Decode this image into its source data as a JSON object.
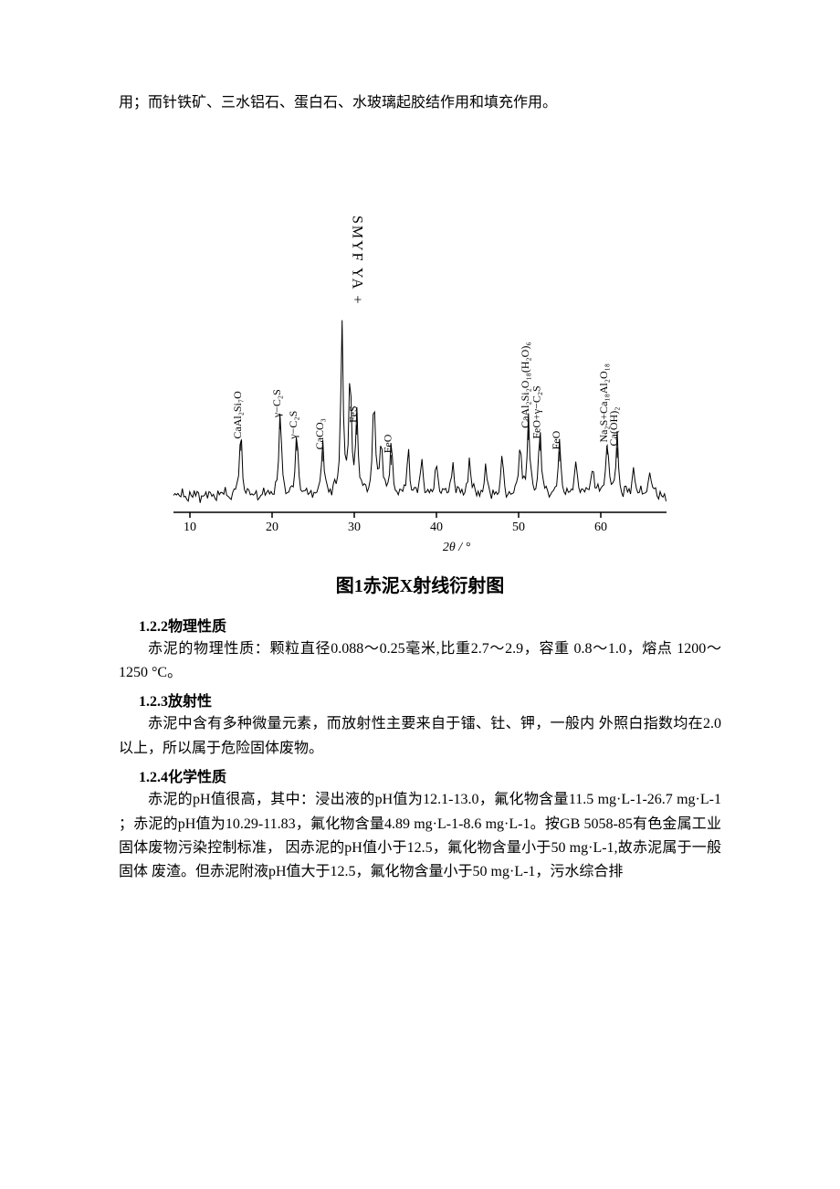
{
  "top_line": "用；而针铁矿、三水铝石、蛋白石、水玻璃起胶结作用和填充作用。",
  "xrd": {
    "type": "line-spectrum",
    "center_label_vertical": "SMYF YA +",
    "x_axis_label": "2θ / °",
    "x_ticks": [
      10,
      20,
      30,
      40,
      50,
      60
    ],
    "xlim": [
      8,
      68
    ],
    "ylim": [
      0,
      110
    ],
    "background_color": "#ffffff",
    "line_color": "#000000",
    "line_width": 1,
    "tick_fontsize": 14,
    "label_fontsize": 14,
    "peak_label_fontsize": 12,
    "peaks": [
      {
        "x": 16.2,
        "h": 36,
        "label": "CaAl₂Si₇O"
      },
      {
        "x": 21.0,
        "h": 48,
        "label": "γ−C₂S"
      },
      {
        "x": 23.0,
        "h": 36,
        "label": "γ−C₂S"
      },
      {
        "x": 26.2,
        "h": 30,
        "label": "CaCO₃"
      },
      {
        "x": 28.5,
        "h": 95,
        "label": ""
      },
      {
        "x": 29.5,
        "h": 65,
        "label": ""
      },
      {
        "x": 30.3,
        "h": 45,
        "label": "FeS"
      },
      {
        "x": 32.4,
        "h": 55,
        "label": ""
      },
      {
        "x": 33.3,
        "h": 30,
        "label": ""
      },
      {
        "x": 34.5,
        "h": 28,
        "label": "FeO"
      },
      {
        "x": 36.6,
        "h": 25,
        "label": ""
      },
      {
        "x": 38.2,
        "h": 20,
        "label": ""
      },
      {
        "x": 40.0,
        "h": 18,
        "label": ""
      },
      {
        "x": 42.0,
        "h": 20,
        "label": ""
      },
      {
        "x": 44.0,
        "h": 22,
        "label": ""
      },
      {
        "x": 46.0,
        "h": 16,
        "label": ""
      },
      {
        "x": 48.0,
        "h": 20,
        "label": ""
      },
      {
        "x": 50.2,
        "h": 30,
        "label": ""
      },
      {
        "x": 51.2,
        "h": 42,
        "label": "CaAl₂Si₂O₁₈(H₂O)₆"
      },
      {
        "x": 52.6,
        "h": 36,
        "label": "FeO+γ−C₂S"
      },
      {
        "x": 55.0,
        "h": 30,
        "label": "FeO"
      },
      {
        "x": 57.0,
        "h": 20,
        "label": ""
      },
      {
        "x": 59.0,
        "h": 18,
        "label": ""
      },
      {
        "x": 60.8,
        "h": 34,
        "label": "Na₂S+Ca₁₈Al₂O₁₈"
      },
      {
        "x": 62.0,
        "h": 32,
        "label": "Ca(OH)₂"
      },
      {
        "x": 64.0,
        "h": 16,
        "label": ""
      },
      {
        "x": 66.0,
        "h": 14,
        "label": ""
      }
    ],
    "noise_floor": 8
  },
  "caption": "图1赤泥X射线衍射图",
  "sec_1_2_2": {
    "heading": "1.2.2物理性质",
    "body": "赤泥的物理性质：颗粒直径0.088〜0.25毫米,比重2.7〜2.9，容重 0.8〜1.0，熔点 1200〜1250 °C。"
  },
  "sec_1_2_3": {
    "heading": "1.2.3放射性",
    "body": "赤泥中含有多种微量元素，而放射性主要来自于镭、钍、钾，一般内 外照白指数均在2.0以上，所以属于危险固体废物。"
  },
  "sec_1_2_4": {
    "heading": "1.2.4化学性质",
    "body": "赤泥的pH值很高，其中：浸出液的pH值为12.1-13.0，氟化物含量11.5 mg·L-1-26.7 mg·L-1 ；赤泥的pH值为10.29-11.83，氟化物含量4.89 mg·L-1-8.6 mg·L-1。按GB 5058-85有色金属工业固体废物污染控制标准， 因赤泥的pH值小于12.5，氟化物含量小于50 mg·L-1,故赤泥属于一般固体 废渣。但赤泥附液pH值大于12.5，氟化物含量小于50 mg·L-1，污水综合排"
  }
}
